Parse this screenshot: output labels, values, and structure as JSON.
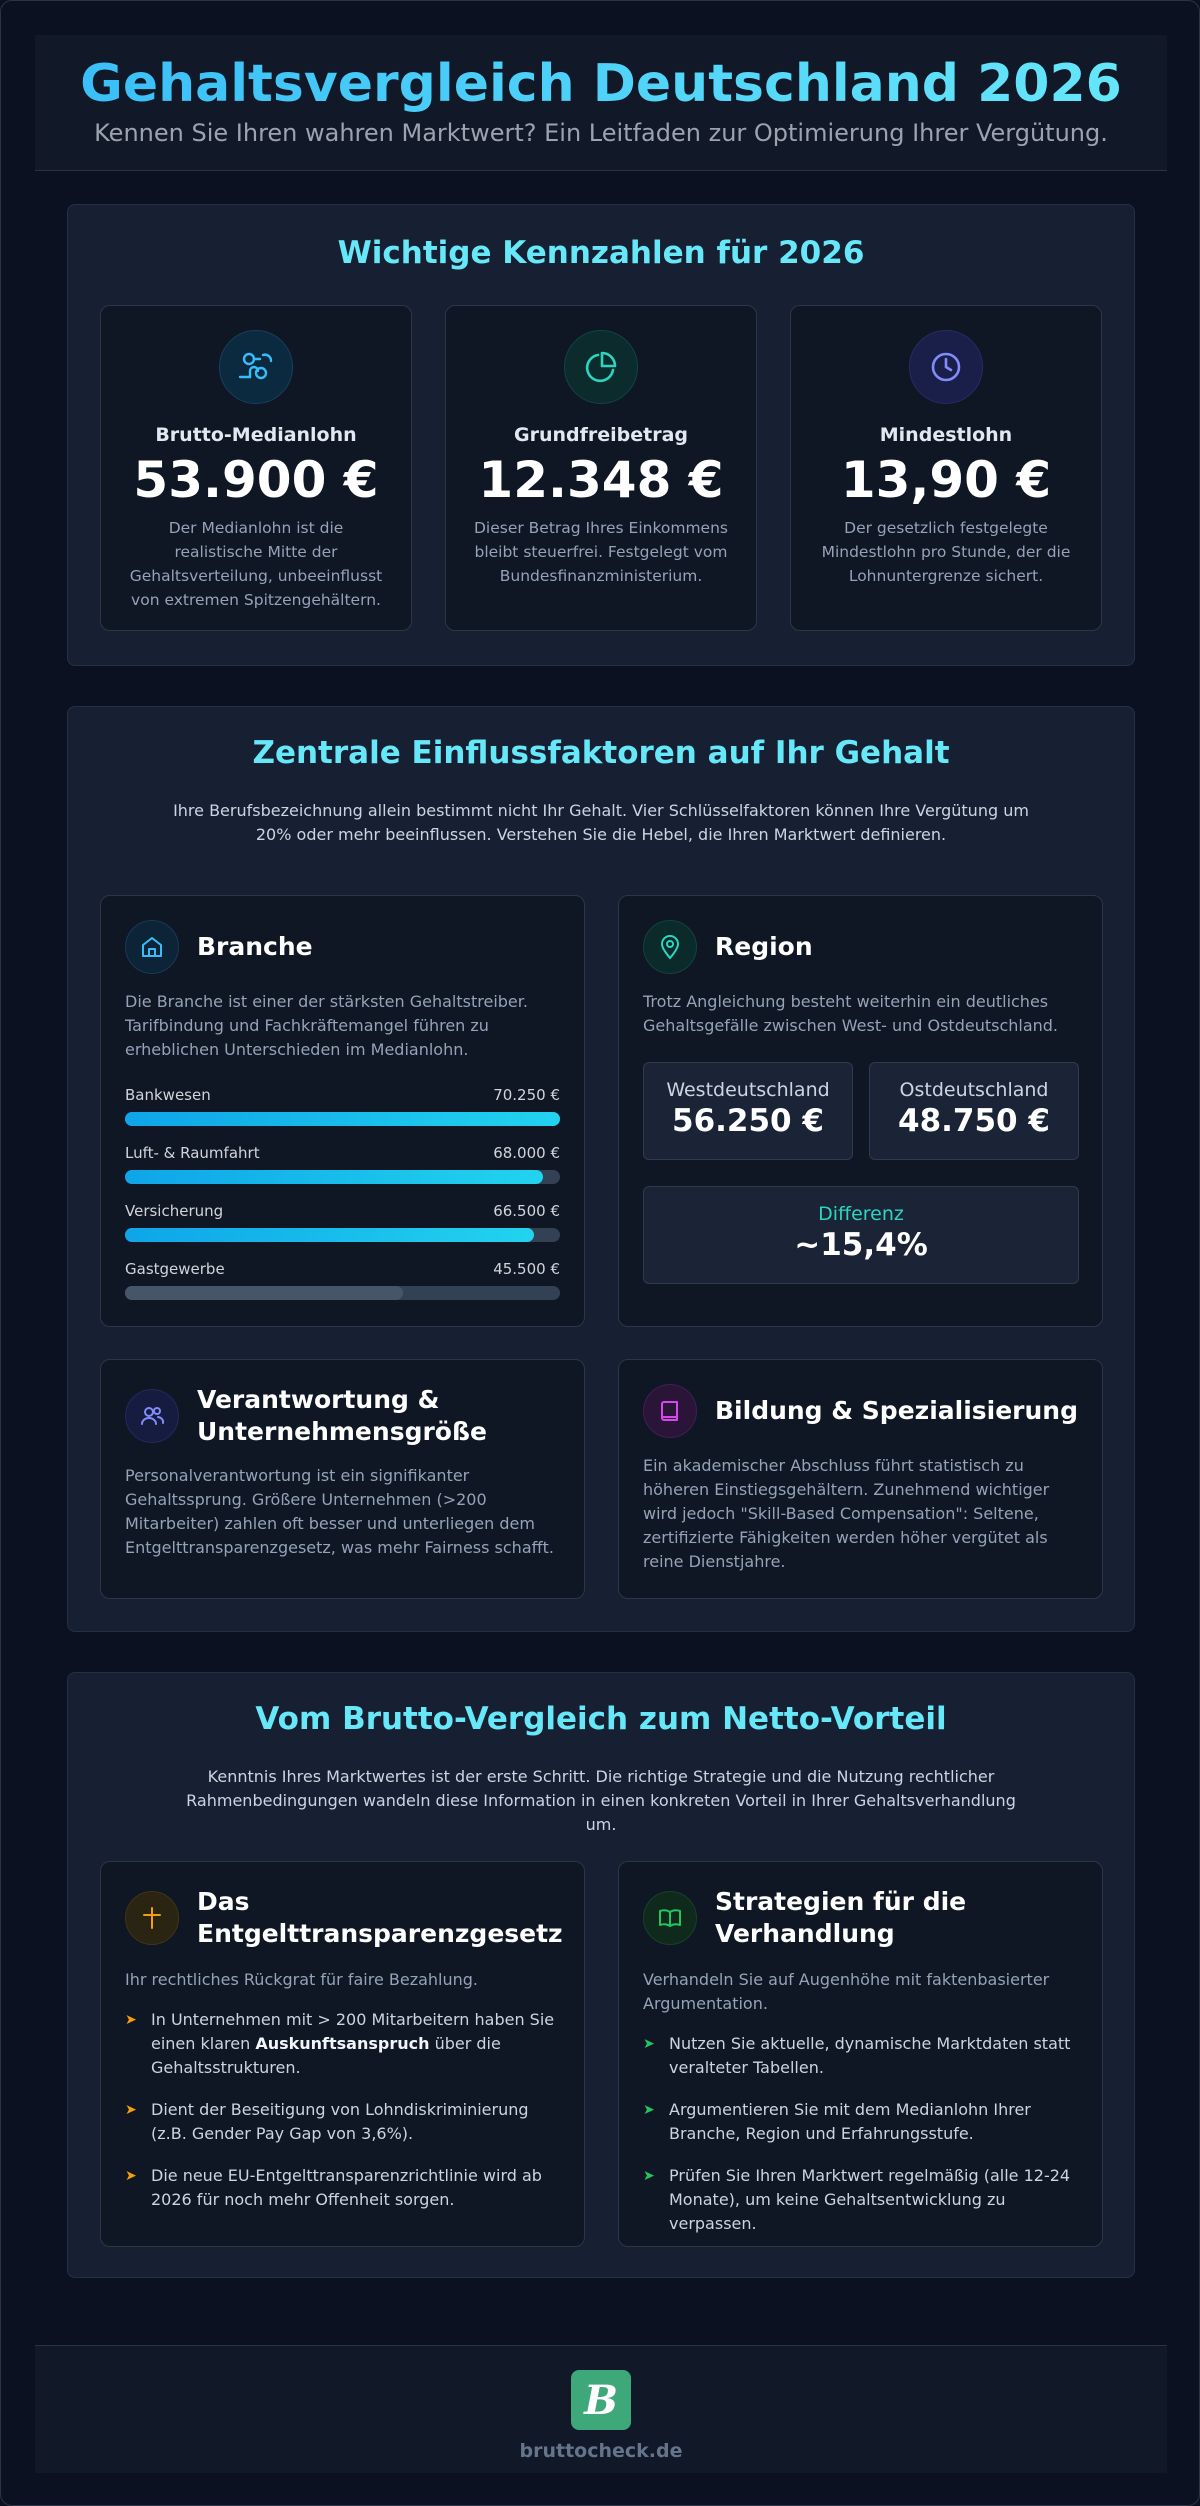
{
  "header": {
    "title": "Gehaltsvergleich Deutschland 2026",
    "subtitle": "Kennen Sie Ihren wahren Marktwert? Ein Leitfaden zur Optimierung Ihrer Vergütung."
  },
  "kennzahlen": {
    "title": "Wichtige Kennzahlen für 2026",
    "cards": [
      {
        "icon": "coins-icon",
        "label": "Brutto-Medianlohn",
        "value": "53.900 €",
        "desc": "Der Medianlohn ist die realistische Mitte der Gehaltsverteilung, unbeeinflusst von extremen Spitzengehältern.",
        "color": "#38bdf8"
      },
      {
        "icon": "pie-chart-icon",
        "label": "Grundfreibetrag",
        "value": "12.348 €",
        "desc": "Dieser Betrag Ihres Einkommens bleibt steuerfrei. Festgelegt vom Bundesfinanzministerium.",
        "color": "#2dd4bf"
      },
      {
        "icon": "clock-icon",
        "label": "Mindestlohn",
        "value": "13,90 €",
        "desc": "Der gesetzlich festgelegte Mindestlohn pro Stunde, der die Lohnuntergrenze sichert.",
        "color": "#818cf8"
      }
    ]
  },
  "faktoren": {
    "title": "Zentrale Einflussfaktoren auf Ihr Gehalt",
    "intro": "Ihre Berufsbezeichnung allein bestimmt nicht Ihr Gehalt. Vier Schlüsselfaktoren können Ihre Vergütung um 20% oder mehr beeinflussen. Verstehen Sie die Hebel, die Ihren Marktwert definieren.",
    "branche": {
      "title": "Branche",
      "text": "Die Branche ist einer der stärksten Gehaltstreiber. Tarifbindung und Fachkräftemangel führen zu erheblichen Unterschieden im Medianlohn.",
      "bars": [
        {
          "label": "Bankwesen",
          "value": "70.250 €",
          "fraction": 1.0
        },
        {
          "label": "Luft- & Raumfahrt",
          "value": "68.000 €",
          "fraction": 0.96
        },
        {
          "label": "Versicherung",
          "value": "66.500 €",
          "fraction": 0.94
        },
        {
          "label": "Gastgewerbe",
          "value": "45.500 €",
          "fraction": 0.64
        }
      ]
    },
    "region": {
      "title": "Region",
      "text": "Trotz Angleichung besteht weiterhin ein deutliches Gehaltsgefälle zwischen West- und Ostdeutschland.",
      "west_label": "Westdeutschland",
      "west_value": "56.250 €",
      "ost_label": "Ostdeutschland",
      "ost_value": "48.750 €",
      "diff_label": "Differenz",
      "diff_value": "~15,4%"
    },
    "verantwortung": {
      "title": "Verantwortung & Unternehmensgröße",
      "text": "Personalverantwortung ist ein signifikanter Gehaltssprung. Größere Unternehmen (>200 Mitarbeiter) zahlen oft besser und unterliegen dem Entgelttransparenzgesetz, was mehr Fairness schafft."
    },
    "bildung": {
      "title": "Bildung & Spezialisierung",
      "text": "Ein akademischer Abschluss führt statistisch zu höheren Einstiegsgehältern. Zunehmend wichtiger wird jedoch \"Skill-Based Compensation\": Seltene, zertifizierte Fähigkeiten werden höher vergütet als reine Dienstjahre."
    }
  },
  "netto": {
    "title": "Vom Brutto-Vergleich zum Netto-Vorteil",
    "intro": "Kenntnis Ihres Marktwertes ist der erste Schritt. Die richtige Strategie und die Nutzung rechtlicher Rahmenbedingungen wandeln diese Information in einen konkreten Vorteil in Ihrer Gehaltsverhandlung um.",
    "gesetz": {
      "title": "Das Entgelttransparenzgesetz",
      "subtitle": "Ihr rechtliches Rückgrat für faire Bezahlung.",
      "item1_pre": "In Unternehmen mit > 200 Mitarbeitern haben Sie einen klaren ",
      "item1_bold": "Auskunftsanspruch",
      "item1_post": " über die Gehaltsstrukturen.",
      "item2": "Dient der Beseitigung von Lohndiskriminierung (z.B. Gender Pay Gap von 3,6%).",
      "item3": "Die neue EU-Entgelttransparenzrichtlinie wird ab 2026 für noch mehr Offenheit sorgen."
    },
    "strategien": {
      "title": "Strategien für die Verhandlung",
      "subtitle": "Verhandeln Sie auf Augenhöhe mit faktenbasierter Argumentation.",
      "items": [
        "Nutzen Sie aktuelle, dynamische Marktdaten statt veralteter Tabellen.",
        "Argumentieren Sie mit dem Medianlohn Ihrer Branche, Region und Erfahrungsstufe.",
        "Prüfen Sie Ihren Marktwert regelmäßig (alle 12-24 Monate), um keine Gehaltsentwicklung zu verpassen."
      ]
    }
  },
  "footer": {
    "logo_letter": "B",
    "brand": "bruttocheck.de"
  }
}
